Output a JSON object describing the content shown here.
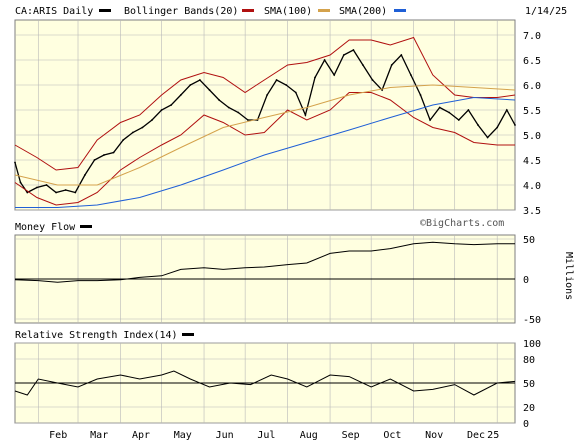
{
  "colors": {
    "background": "#ffffff",
    "plot_bg": "#ffffe0",
    "grid": "#b8b8b8",
    "frame": "#7f7f7f",
    "price": "#000000",
    "bollinger": "#b01010",
    "sma100": "#d4a24c",
    "sma200": "#1f5fd6"
  },
  "price_panel": {
    "ticker_label": "CA:ARIS Daily",
    "legend": [
      {
        "label": "Bollinger Bands(20)",
        "color": "#b01010"
      },
      {
        "label": "SMA(100)",
        "color": "#d4a24c"
      },
      {
        "label": "SMA(200)",
        "color": "#1f5fd6"
      }
    ],
    "date_label": "1/14/25",
    "watermark": "©BigCharts.com",
    "y_ticks": [
      "7.0",
      "6.5",
      "6.0",
      "5.5",
      "5.0",
      "4.5",
      "4.0",
      "3.5"
    ]
  },
  "money_flow_panel": {
    "title": "Money Flow",
    "y_ticks": [
      "50",
      "0",
      "-50"
    ],
    "unit_label": "Millions"
  },
  "rsi_panel": {
    "title": "Relative Strength Index(14)",
    "y_ticks": [
      "100",
      "80",
      "50",
      "20",
      "0"
    ]
  },
  "x_axis": {
    "labels": [
      "Feb",
      "Mar",
      "Apr",
      "May",
      "Jun",
      "Jul",
      "Aug",
      "Sep",
      "Oct",
      "Nov",
      "Dec",
      "25"
    ]
  },
  "chart_data": [
    {
      "type": "line",
      "subtype": "ohlc_with_bollinger_and_sma",
      "title": "CA:ARIS Daily",
      "ylim": [
        3.5,
        7.3
      ],
      "x_start": "2024-01-15",
      "x_end": "2025-01-14",
      "series": [
        {
          "name": "price",
          "points": [
            [
              "2024-01-15",
              4.45
            ],
            [
              "2024-01-19",
              4.05
            ],
            [
              "2024-01-24",
              3.85
            ],
            [
              "2024-01-31",
              3.95
            ],
            [
              "2024-02-07",
              4.0
            ],
            [
              "2024-02-14",
              3.85
            ],
            [
              "2024-02-21",
              3.9
            ],
            [
              "2024-02-28",
              3.85
            ],
            [
              "2024-03-06",
              4.2
            ],
            [
              "2024-03-13",
              4.5
            ],
            [
              "2024-03-20",
              4.6
            ],
            [
              "2024-03-27",
              4.65
            ],
            [
              "2024-04-03",
              4.9
            ],
            [
              "2024-04-10",
              5.05
            ],
            [
              "2024-04-17",
              5.15
            ],
            [
              "2024-04-24",
              5.3
            ],
            [
              "2024-05-01",
              5.5
            ],
            [
              "2024-05-08",
              5.6
            ],
            [
              "2024-05-15",
              5.8
            ],
            [
              "2024-05-22",
              6.0
            ],
            [
              "2024-05-29",
              6.1
            ],
            [
              "2024-06-05",
              5.9
            ],
            [
              "2024-06-12",
              5.7
            ],
            [
              "2024-06-19",
              5.55
            ],
            [
              "2024-06-26",
              5.45
            ],
            [
              "2024-07-03",
              5.3
            ],
            [
              "2024-07-10",
              5.3
            ],
            [
              "2024-07-17",
              5.8
            ],
            [
              "2024-07-24",
              6.1
            ],
            [
              "2024-07-31",
              6.0
            ],
            [
              "2024-08-07",
              5.85
            ],
            [
              "2024-08-14",
              5.4
            ],
            [
              "2024-08-21",
              6.15
            ],
            [
              "2024-08-28",
              6.5
            ],
            [
              "2024-09-04",
              6.2
            ],
            [
              "2024-09-11",
              6.6
            ],
            [
              "2024-09-18",
              6.7
            ],
            [
              "2024-09-25",
              6.4
            ],
            [
              "2024-10-02",
              6.1
            ],
            [
              "2024-10-09",
              5.9
            ],
            [
              "2024-10-16",
              6.4
            ],
            [
              "2024-10-23",
              6.6
            ],
            [
              "2024-10-30",
              6.2
            ],
            [
              "2024-11-06",
              5.8
            ],
            [
              "2024-11-13",
              5.3
            ],
            [
              "2024-11-20",
              5.55
            ],
            [
              "2024-11-27",
              5.45
            ],
            [
              "2024-12-04",
              5.3
            ],
            [
              "2024-12-11",
              5.5
            ],
            [
              "2024-12-18",
              5.2
            ],
            [
              "2024-12-25",
              4.95
            ],
            [
              "2025-01-01",
              5.15
            ],
            [
              "2025-01-08",
              5.5
            ],
            [
              "2025-01-14",
              5.2
            ]
          ]
        },
        {
          "name": "bollinger_upper",
          "points": [
            [
              "2024-01-15",
              4.8
            ],
            [
              "2024-01-31",
              4.55
            ],
            [
              "2024-02-14",
              4.3
            ],
            [
              "2024-03-01",
              4.35
            ],
            [
              "2024-03-15",
              4.9
            ],
            [
              "2024-04-01",
              5.25
            ],
            [
              "2024-04-15",
              5.4
            ],
            [
              "2024-05-01",
              5.8
            ],
            [
              "2024-05-15",
              6.1
            ],
            [
              "2024-06-01",
              6.25
            ],
            [
              "2024-06-15",
              6.15
            ],
            [
              "2024-07-01",
              5.85
            ],
            [
              "2024-07-15",
              6.1
            ],
            [
              "2024-08-01",
              6.4
            ],
            [
              "2024-08-15",
              6.45
            ],
            [
              "2024-09-01",
              6.6
            ],
            [
              "2024-09-15",
              6.9
            ],
            [
              "2024-10-01",
              6.9
            ],
            [
              "2024-10-15",
              6.8
            ],
            [
              "2024-11-01",
              6.95
            ],
            [
              "2024-11-15",
              6.2
            ],
            [
              "2024-12-01",
              5.8
            ],
            [
              "2024-12-15",
              5.75
            ],
            [
              "2025-01-01",
              5.75
            ],
            [
              "2025-01-14",
              5.8
            ]
          ]
        },
        {
          "name": "bollinger_lower",
          "points": [
            [
              "2024-01-15",
              4.05
            ],
            [
              "2024-01-31",
              3.75
            ],
            [
              "2024-02-14",
              3.6
            ],
            [
              "2024-03-01",
              3.65
            ],
            [
              "2024-03-15",
              3.85
            ],
            [
              "2024-04-01",
              4.3
            ],
            [
              "2024-04-15",
              4.55
            ],
            [
              "2024-05-01",
              4.8
            ],
            [
              "2024-05-15",
              5.0
            ],
            [
              "2024-06-01",
              5.4
            ],
            [
              "2024-06-15",
              5.25
            ],
            [
              "2024-07-01",
              5.0
            ],
            [
              "2024-07-15",
              5.05
            ],
            [
              "2024-08-01",
              5.5
            ],
            [
              "2024-08-15",
              5.3
            ],
            [
              "2024-09-01",
              5.5
            ],
            [
              "2024-09-15",
              5.85
            ],
            [
              "2024-10-01",
              5.85
            ],
            [
              "2024-10-15",
              5.7
            ],
            [
              "2024-11-01",
              5.35
            ],
            [
              "2024-11-15",
              5.15
            ],
            [
              "2024-12-01",
              5.05
            ],
            [
              "2024-12-15",
              4.85
            ],
            [
              "2025-01-01",
              4.8
            ],
            [
              "2025-01-14",
              4.8
            ]
          ]
        },
        {
          "name": "sma100",
          "points": [
            [
              "2024-01-15",
              4.2
            ],
            [
              "2024-02-15",
              4.0
            ],
            [
              "2024-03-15",
              4.0
            ],
            [
              "2024-04-15",
              4.35
            ],
            [
              "2024-05-15",
              4.75
            ],
            [
              "2024-06-15",
              5.15
            ],
            [
              "2024-07-15",
              5.35
            ],
            [
              "2024-08-15",
              5.55
            ],
            [
              "2024-09-15",
              5.8
            ],
            [
              "2024-10-15",
              5.95
            ],
            [
              "2024-11-15",
              6.0
            ],
            [
              "2024-12-15",
              5.95
            ],
            [
              "2025-01-14",
              5.9
            ]
          ]
        },
        {
          "name": "sma200",
          "points": [
            [
              "2024-01-15",
              3.55
            ],
            [
              "2024-02-15",
              3.55
            ],
            [
              "2024-03-15",
              3.6
            ],
            [
              "2024-04-15",
              3.75
            ],
            [
              "2024-05-15",
              4.0
            ],
            [
              "2024-06-15",
              4.3
            ],
            [
              "2024-07-15",
              4.6
            ],
            [
              "2024-08-15",
              4.85
            ],
            [
              "2024-09-15",
              5.1
            ],
            [
              "2024-10-15",
              5.35
            ],
            [
              "2024-11-15",
              5.6
            ],
            [
              "2024-12-15",
              5.75
            ],
            [
              "2025-01-14",
              5.7
            ]
          ]
        }
      ]
    },
    {
      "type": "line",
      "title": "Money Flow",
      "ylabel": "Millions",
      "ylim": [
        -55,
        55
      ],
      "series": [
        {
          "name": "money_flow",
          "points": [
            [
              "2024-01-15",
              -1
            ],
            [
              "2024-02-01",
              -2
            ],
            [
              "2024-02-15",
              -4
            ],
            [
              "2024-03-01",
              -2
            ],
            [
              "2024-03-15",
              -2
            ],
            [
              "2024-04-01",
              -1
            ],
            [
              "2024-04-15",
              2
            ],
            [
              "2024-05-01",
              4
            ],
            [
              "2024-05-15",
              12
            ],
            [
              "2024-06-01",
              14
            ],
            [
              "2024-06-15",
              12
            ],
            [
              "2024-07-01",
              14
            ],
            [
              "2024-07-15",
              15
            ],
            [
              "2024-08-01",
              18
            ],
            [
              "2024-08-15",
              20
            ],
            [
              "2024-09-01",
              32
            ],
            [
              "2024-09-15",
              35
            ],
            [
              "2024-10-01",
              35
            ],
            [
              "2024-10-15",
              38
            ],
            [
              "2024-11-01",
              44
            ],
            [
              "2024-11-15",
              46
            ],
            [
              "2024-12-01",
              44
            ],
            [
              "2024-12-15",
              43
            ],
            [
              "2025-01-01",
              44
            ],
            [
              "2025-01-14",
              44
            ]
          ]
        }
      ]
    },
    {
      "type": "line",
      "title": "Relative Strength Index(14)",
      "ylim": [
        0,
        100
      ],
      "series": [
        {
          "name": "rsi",
          "points": [
            [
              "2024-01-15",
              40
            ],
            [
              "2024-01-24",
              35
            ],
            [
              "2024-02-01",
              55
            ],
            [
              "2024-02-15",
              50
            ],
            [
              "2024-03-01",
              45
            ],
            [
              "2024-03-15",
              55
            ],
            [
              "2024-04-01",
              60
            ],
            [
              "2024-04-15",
              55
            ],
            [
              "2024-05-01",
              60
            ],
            [
              "2024-05-10",
              65
            ],
            [
              "2024-05-22",
              55
            ],
            [
              "2024-06-05",
              45
            ],
            [
              "2024-06-20",
              50
            ],
            [
              "2024-07-05",
              48
            ],
            [
              "2024-07-20",
              60
            ],
            [
              "2024-08-01",
              55
            ],
            [
              "2024-08-15",
              45
            ],
            [
              "2024-09-01",
              60
            ],
            [
              "2024-09-15",
              58
            ],
            [
              "2024-10-01",
              45
            ],
            [
              "2024-10-15",
              55
            ],
            [
              "2024-11-01",
              40
            ],
            [
              "2024-11-15",
              42
            ],
            [
              "2024-12-01",
              48
            ],
            [
              "2024-12-15",
              35
            ],
            [
              "2025-01-01",
              50
            ],
            [
              "2025-01-14",
              52
            ]
          ]
        }
      ]
    }
  ]
}
